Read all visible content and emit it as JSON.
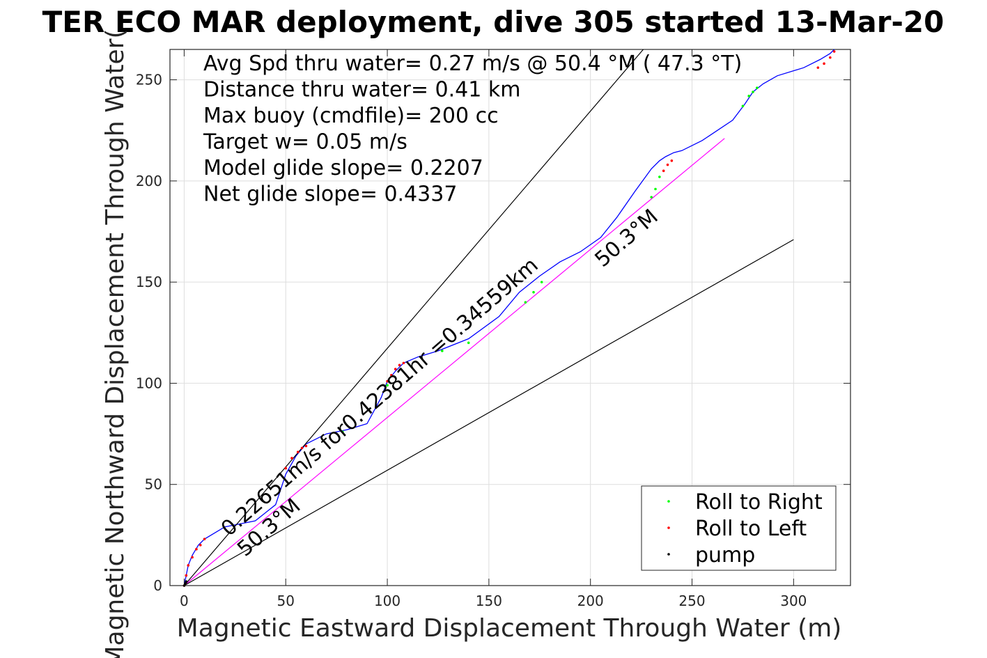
{
  "chart_data": {
    "type": "line",
    "title": "TER ECO MAR deployment, dive 305 started 13-Mar-20",
    "xlabel": "Magnetic Eastward Displacement Through Water (m)",
    "ylabel": "Magnetic Northward Displacement Through Water(",
    "xlim": [
      -7,
      328
    ],
    "ylim": [
      0,
      265
    ],
    "xticks": [
      0,
      50,
      100,
      150,
      200,
      250,
      300
    ],
    "yticks": [
      0,
      50,
      100,
      150,
      200,
      250
    ],
    "grid": true,
    "info_lines": [
      "Avg Spd thru water=  0.27 m/s @  50.4 °M ( 47.3 °T)",
      "Distance thru water=  0.41 km",
      "Max buoy (cmdfile)= 200 cc",
      "Target w= 0.05 m/s",
      "Model glide slope= 0.2207",
      "Net glide slope= 0.4337"
    ],
    "legend": {
      "position": "bottom-right",
      "entries": [
        {
          "label": "Roll to Right",
          "color": "#00ff00"
        },
        {
          "label": "Roll to Left",
          "color": "#ff0000"
        },
        {
          "label": "pump",
          "color": "#000000"
        }
      ]
    },
    "annotations": [
      {
        "text": "0.22651m/s for0.42381hr =0.34559km",
        "x": 22,
        "y": 24,
        "angle": 41
      },
      {
        "text": "50.3°M",
        "x": 30,
        "y": 14,
        "angle": 41
      },
      {
        "text": "50.3°M",
        "x": 206,
        "y": 157,
        "angle": 41
      }
    ],
    "series": [
      {
        "role": "track",
        "color": "#0000ff",
        "x": [
          0,
          1,
          2,
          4,
          7,
          10,
          20,
          35,
          45,
          50,
          55,
          60,
          70,
          80,
          90,
          97,
          100,
          104,
          108,
          115,
          125,
          140,
          155,
          165,
          175,
          185,
          195,
          205,
          213,
          222,
          230,
          234,
          237,
          241,
          245,
          255,
          270,
          276,
          280,
          285,
          292,
          305,
          313,
          318,
          320
        ],
        "y": [
          0,
          5,
          10,
          15,
          20,
          23,
          29,
          32,
          40,
          55,
          64,
          70,
          75,
          77,
          80,
          93,
          101,
          106,
          110,
          113,
          116,
          122,
          133,
          145,
          153,
          160,
          165,
          172,
          182,
          195,
          206,
          210,
          212,
          214,
          215,
          220,
          230,
          238,
          244,
          248,
          252,
          256,
          260,
          263,
          265
        ]
      },
      {
        "role": "net-displacement",
        "color": "#ff00ff",
        "x": [
          0,
          266
        ],
        "y": [
          0,
          221
        ]
      },
      {
        "role": "guide-line-steep",
        "color": "#000000",
        "x": [
          0,
          226
        ],
        "y": [
          0,
          265
        ]
      },
      {
        "role": "guide-line-shallow",
        "color": "#000000",
        "x": [
          0,
          300
        ],
        "y": [
          0,
          171
        ]
      }
    ],
    "markers": {
      "roll_right": {
        "color": "#00ff00",
        "x": [
          78,
          100,
          127,
          140,
          168,
          172,
          176,
          230,
          232,
          234,
          275,
          278,
          280,
          282
        ],
        "y": [
          76,
          99,
          116,
          120,
          140,
          145,
          150,
          192,
          196,
          202,
          237,
          242,
          244,
          246
        ]
      },
      "roll_left": {
        "color": "#ff0000",
        "x": [
          0,
          1,
          2,
          4,
          6,
          8,
          10,
          50,
          53,
          56,
          58,
          60,
          100,
          102,
          104,
          106,
          108,
          236,
          238,
          240,
          312,
          315,
          318,
          320
        ],
        "y": [
          0,
          5,
          10,
          14,
          18,
          20,
          23,
          58,
          63,
          66,
          68,
          69,
          101,
          104,
          107,
          109,
          110,
          205,
          208,
          210,
          256,
          258,
          261,
          264
        ]
      },
      "pump": {
        "color": "#000000",
        "x": [
          0,
          0.5,
          1
        ],
        "y": [
          0,
          1,
          2
        ]
      }
    }
  }
}
